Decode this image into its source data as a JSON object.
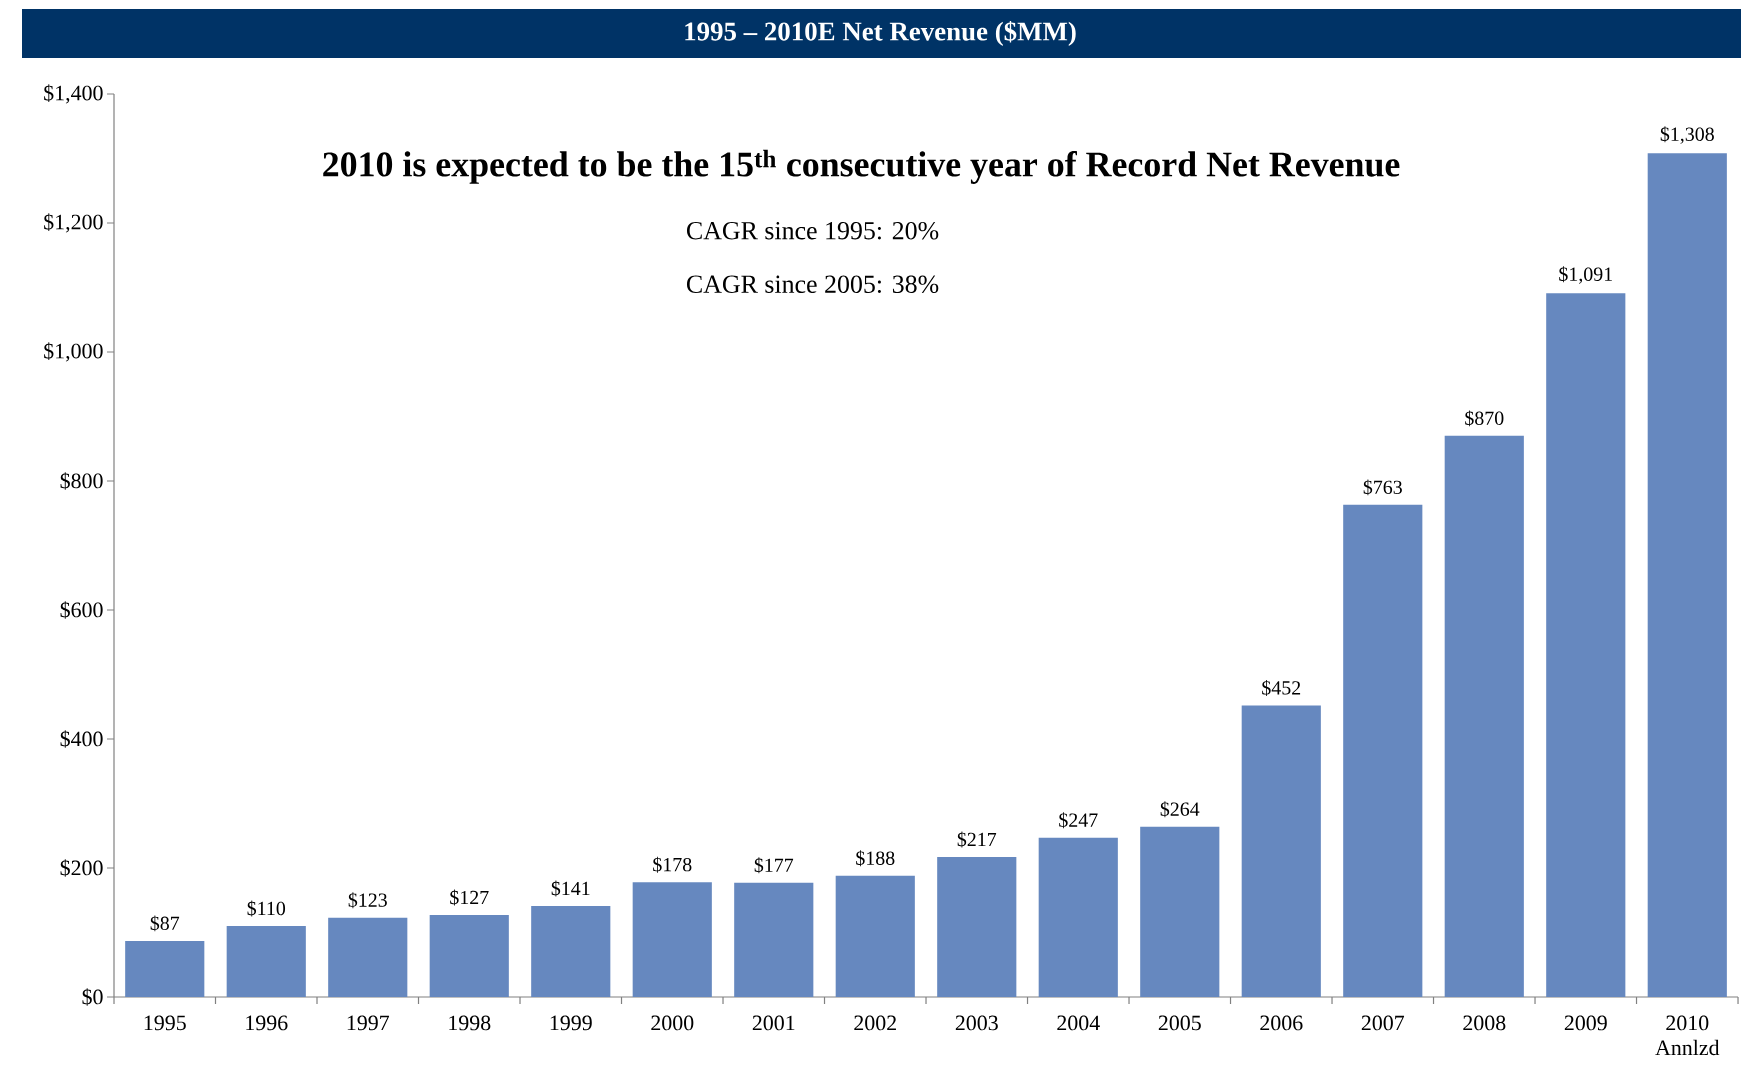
{
  "chart_data": {
    "type": "bar",
    "title": "1995 – 2010E Net Revenue ($MM)",
    "categories": [
      "1995",
      "1996",
      "1997",
      "1998",
      "1999",
      "2000",
      "2001",
      "2002",
      "2003",
      "2004",
      "2005",
      "2006",
      "2007",
      "2008",
      "2009",
      "2010 Annlzd"
    ],
    "values": [
      87,
      110,
      123,
      127,
      141,
      178,
      177,
      188,
      217,
      247,
      264,
      452,
      763,
      870,
      1091,
      1308
    ],
    "value_labels": [
      "$87",
      "$110",
      "$123",
      "$127",
      "$141",
      "$178",
      "$177",
      "$188",
      "$217",
      "$247",
      "$264",
      "$452",
      "$763",
      "$870",
      "$1,091",
      "$1,308"
    ],
    "color": "#6688bf",
    "ylim": [
      0,
      1400
    ],
    "yticks": [
      {
        "value": 0,
        "label": "$0"
      },
      {
        "value": 200,
        "label": "$200"
      },
      {
        "value": 400,
        "label": "$400"
      },
      {
        "value": 600,
        "label": "$600"
      },
      {
        "value": 800,
        "label": "$800"
      },
      {
        "value": 1000,
        "label": "$1,000"
      },
      {
        "value": 1200,
        "label": "$1,200"
      },
      {
        "value": 1400,
        "label": "$1,400"
      }
    ],
    "annotations": [
      "2010 is expected to be the 15$^{th}$ consecutive year of Record Net Revenue",
      "CAGR since 1995:  20%",
      "CAGR since 2005:  38%"
    ]
  }
}
